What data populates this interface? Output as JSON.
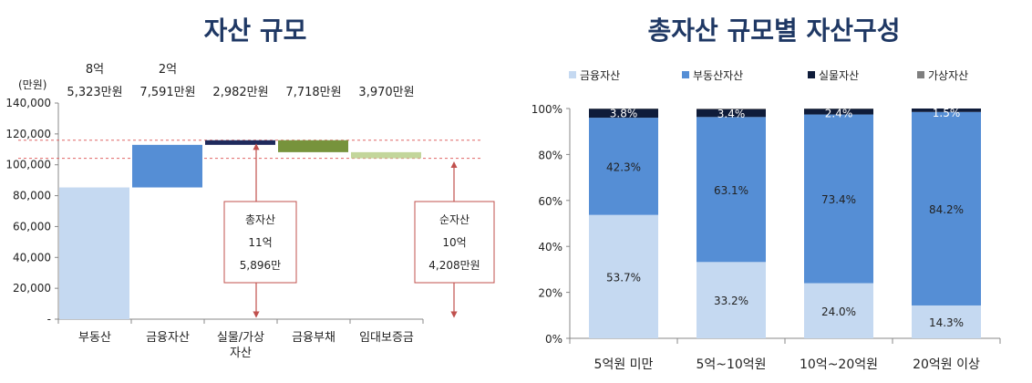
{
  "chart_data": [
    {
      "type": "bar",
      "subtype": "waterfall",
      "title": "자산 규모",
      "unit_label": "(만원)",
      "ylim": [
        0,
        140000
      ],
      "y_ticks": [
        "-",
        "20,000",
        "40,000",
        "60,000",
        "80,000",
        "100,000",
        "120,000",
        "140,000"
      ],
      "grid": false,
      "categories": [
        "부동산",
        "금융자산",
        "실물/가상 자산",
        "금융부채",
        "임대보증금"
      ],
      "value_labels": [
        {
          "line1": "8억",
          "line2": "5,323만원"
        },
        {
          "line1": "2억",
          "line2": "7,591만원"
        },
        {
          "line1": "",
          "line2": "2,982만원"
        },
        {
          "line1": "",
          "line2": "7,718만원"
        },
        {
          "line1": "",
          "line2": "3,970만원"
        }
      ],
      "bars": [
        {
          "start": 0,
          "end": 85323,
          "color": "#c5d9f1"
        },
        {
          "start": 85323,
          "end": 112914,
          "color": "#558ed5"
        },
        {
          "start": 112914,
          "end": 115896,
          "color": "#1f2a5c"
        },
        {
          "start": 115896,
          "end": 108178,
          "color": "#77933c"
        },
        {
          "start": 108178,
          "end": 104208,
          "color": "#c3d69b"
        }
      ],
      "reference_lines": [
        115896,
        104208
      ],
      "annotations": [
        {
          "lines": [
            "총자산",
            "11억",
            "5,896만"
          ],
          "value": 115896
        },
        {
          "lines": [
            "순자산",
            "10억",
            "4,208만원"
          ],
          "value": 104208
        }
      ]
    },
    {
      "type": "bar",
      "subtype": "stacked-100",
      "title": "총자산 규모별 자산구성",
      "categories": [
        "5억원 미만",
        "5억~10억원",
        "10억~20억원",
        "20억원 이상"
      ],
      "ylim": [
        0,
        100
      ],
      "y_ticks": [
        "0%",
        "20%",
        "40%",
        "60%",
        "80%",
        "100%"
      ],
      "grid": false,
      "legend_position": "top",
      "series": [
        {
          "name": "금융자산",
          "color": "#c5d9f1",
          "values": [
            53.7,
            33.2,
            24.0,
            14.3
          ],
          "labels": [
            "53.7%",
            "33.2%",
            "24.0%",
            "14.3%"
          ]
        },
        {
          "name": "부동산자산",
          "color": "#558ed5",
          "values": [
            42.3,
            63.1,
            73.4,
            84.2
          ],
          "labels": [
            "42.3%",
            "63.1%",
            "73.4%",
            "84.2%"
          ]
        },
        {
          "name": "실물자산",
          "color": "#0f1c3a",
          "values": [
            3.8,
            3.4,
            2.4,
            1.5
          ],
          "labels": [
            "3.8%",
            "3.4%",
            "2.4%",
            "1.5%"
          ]
        },
        {
          "name": "가상자산",
          "color": "#7f7f7f",
          "values": [
            0.2,
            0.3,
            0.2,
            0.0
          ],
          "labels": [
            "",
            "",
            "",
            ""
          ]
        }
      ]
    }
  ]
}
